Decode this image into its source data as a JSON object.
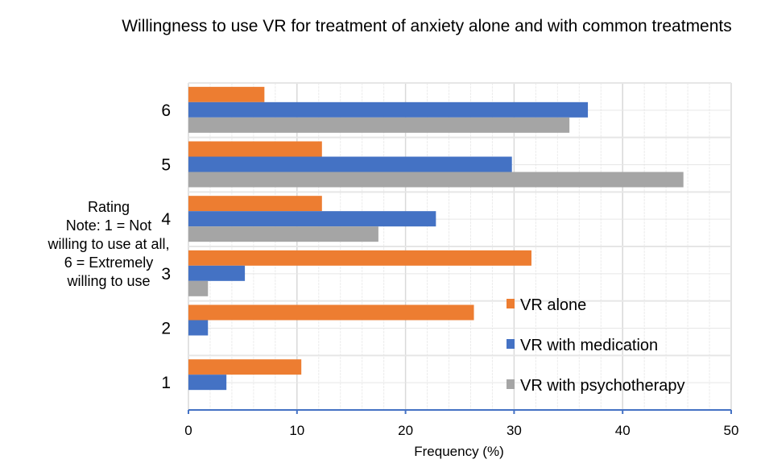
{
  "chart_data": {
    "type": "bar",
    "orientation": "horizontal",
    "title": "Willingness to use VR for treatment of anxiety alone and with common treatments",
    "xlabel": "Frequency (%)",
    "ylabel": "Rating\nNote: 1 = Not willing to use at all, 6 = Extremely willing to use",
    "ylabel_lines": [
      "Rating",
      "Note: 1 = Not",
      "willing to use at all,",
      "6 = Extremely",
      "willing to use"
    ],
    "categories": [
      "1",
      "2",
      "3",
      "4",
      "5",
      "6"
    ],
    "xlim": [
      0,
      50
    ],
    "xticks": [
      0,
      10,
      20,
      30,
      40,
      50
    ],
    "grid": true,
    "legend_position": "bottom-right",
    "series": [
      {
        "name": "VR alone",
        "color": "#ED7D31",
        "values": [
          10.4,
          26.3,
          31.6,
          12.3,
          12.3,
          7.0
        ]
      },
      {
        "name": "VR with medication",
        "color": "#4472C4",
        "values": [
          3.5,
          1.8,
          5.2,
          22.8,
          29.8,
          36.8
        ]
      },
      {
        "name": "VR with psychotherapy",
        "color": "#A5A5A5",
        "values": [
          0,
          0,
          1.8,
          17.5,
          45.6,
          35.1
        ]
      }
    ]
  }
}
